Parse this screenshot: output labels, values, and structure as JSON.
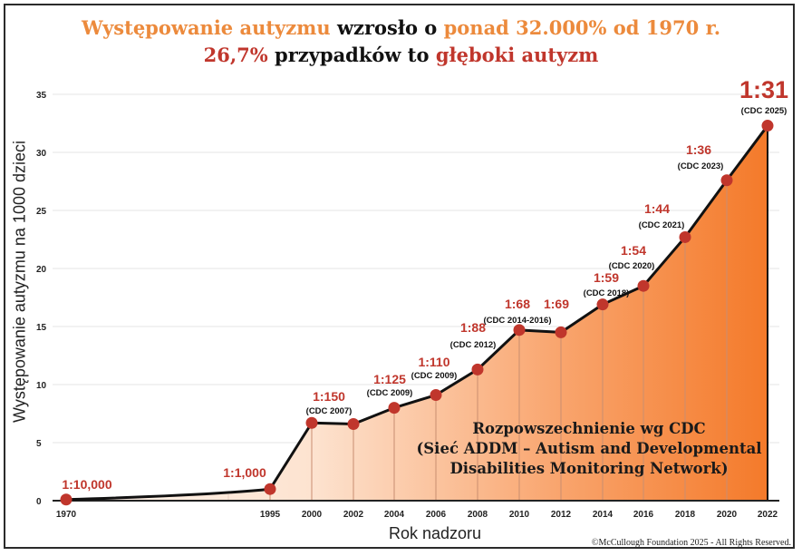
{
  "header": {
    "line1": {
      "part1": "Występowanie autyzmu",
      "part2": " wzrosło o ",
      "part3": "ponad 32.000% od 1970 r."
    },
    "line2": {
      "part1": "26,7%",
      "part2": " przypadków to ",
      "part3": "głęboki autyzm"
    }
  },
  "axes": {
    "ylabel": "Występowanie autyzmu na 1000 dzieci",
    "xlabel": "Rok nadzoru"
  },
  "source_box": {
    "line1": "Rozpowszechnienie wg CDC",
    "line2": "(Sieć ADDM – Autism and Developmental",
    "line3": "Disabilities Monitoring Network)"
  },
  "copyright": "©McCullough Foundation 2025 - All Rights Reserved.",
  "colors": {
    "title_orange": "#ec8a3c",
    "title_red": "#c0362c",
    "marker_red": "#c0362c",
    "area_light": "#fde6d6",
    "area_dark": "#f47a2a",
    "line": "#111111"
  },
  "chart_data": {
    "type": "area",
    "title": "Występowanie autyzmu wzrosło o ponad 32.000% od 1970 r. 26,7% przypadków to głęboki autyzm",
    "xlabel": "Rok nadzoru",
    "ylabel": "Występowanie autyzmu na 1000 dzieci",
    "ylim": [
      0,
      35
    ],
    "yticks": [
      0,
      5,
      10,
      15,
      20,
      25,
      30,
      35
    ],
    "grid": true,
    "categories": [
      "1970",
      "1995",
      "2000",
      "2002",
      "2004",
      "2006",
      "2008",
      "2010",
      "2012",
      "2014",
      "2016",
      "2018",
      "2020",
      "2022"
    ],
    "series": [
      {
        "name": "Występowanie autyzmu na 1000 dzieci",
        "values": [
          0.1,
          1.0,
          6.7,
          6.6,
          8.0,
          9.1,
          11.3,
          14.7,
          14.5,
          16.9,
          18.5,
          22.7,
          27.6,
          32.3
        ]
      }
    ],
    "annotations": [
      {
        "x": "1970",
        "ratio": "1:10,000",
        "source": ""
      },
      {
        "x": "1995",
        "ratio": "1:1,000",
        "source": ""
      },
      {
        "x": "2000",
        "ratio": "1:150",
        "source": "(CDC 2007)"
      },
      {
        "x": "2002",
        "ratio": "",
        "source": ""
      },
      {
        "x": "2004",
        "ratio": "1:125",
        "source": "(CDC 2009)"
      },
      {
        "x": "2006",
        "ratio": "1:110",
        "source": "(CDC 2009)"
      },
      {
        "x": "2008",
        "ratio": "1:88",
        "source": "(CDC 2012)"
      },
      {
        "x": "2010",
        "ratio": "1:68",
        "source": "(CDC 2014-2016)"
      },
      {
        "x": "2012",
        "ratio": "1:69",
        "source": ""
      },
      {
        "x": "2014",
        "ratio": "1:59",
        "source": "(CDC 2018)"
      },
      {
        "x": "2016",
        "ratio": "1:54",
        "source": "(CDC 2020)"
      },
      {
        "x": "2018",
        "ratio": "1:44",
        "source": "(CDC 2021)"
      },
      {
        "x": "2020",
        "ratio": "1:36",
        "source": "(CDC 2023)"
      },
      {
        "x": "2022",
        "ratio": "1:31",
        "source": "(CDC 2025)"
      }
    ]
  }
}
